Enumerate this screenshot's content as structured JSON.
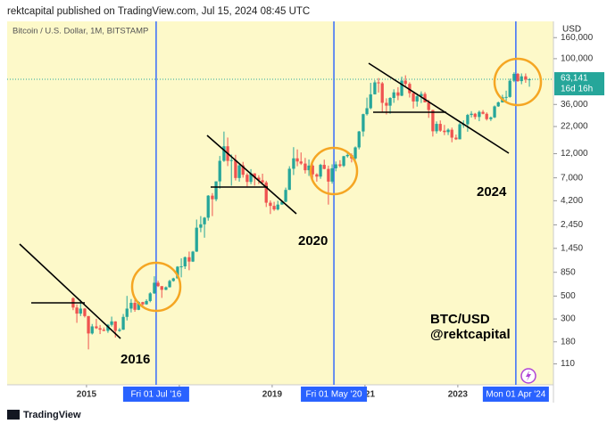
{
  "header": {
    "publisher": "rektcapital published on TradingView.com, Jul 15, 2024 08:45 UTC"
  },
  "chart_data": {
    "type": "candlestick",
    "subtitle": "Bitcoin / U.S. Dollar, 1M, BITSTAMP",
    "currency": "USD",
    "log_scale": true,
    "up_color": "#26a69a",
    "down_color": "#ef5350",
    "xlim": [
      2013.29,
      2025.06
    ],
    "ylim": [
      69,
      230000
    ],
    "xticks": [
      2015,
      2017,
      2019,
      2021,
      2023
    ],
    "yticks": [
      {
        "value": 160000,
        "label": "160,000"
      },
      {
        "value": 100000,
        "label": "100,000"
      },
      {
        "value": 36000,
        "label": "36,000"
      },
      {
        "value": 22000,
        "label": "22,000"
      },
      {
        "value": 12000,
        "label": "12,000"
      },
      {
        "value": 7000,
        "label": "7,000"
      },
      {
        "value": 4200,
        "label": "4,200"
      },
      {
        "value": 2450,
        "label": "2,450"
      },
      {
        "value": 1450,
        "label": "1,450"
      },
      850,
      500,
      300,
      180,
      110
    ],
    "last_price": {
      "value": 63141,
      "label": "63,141"
    },
    "countdown": "16d 16h",
    "markers": [
      {
        "x": 2016.5,
        "label": "Fri 01 Jul '16"
      },
      {
        "x": 2020.33,
        "label": "Fri 01 May '20"
      },
      {
        "x": 2024.25,
        "label": "Mon 01 Apr '24"
      }
    ],
    "annotations": [
      "2016",
      "2020",
      "2024",
      "BTC/USD",
      "@rektcapital"
    ],
    "x": [
      2014.67,
      2014.75,
      2014.83,
      2014.92,
      2015.0,
      2015.08,
      2015.17,
      2015.25,
      2015.33,
      2015.42,
      2015.5,
      2015.58,
      2015.67,
      2015.75,
      2015.83,
      2015.92,
      2016.0,
      2016.08,
      2016.17,
      2016.25,
      2016.33,
      2016.42,
      2016.5,
      2016.58,
      2016.67,
      2016.75,
      2016.83,
      2016.92,
      2017.0,
      2017.08,
      2017.17,
      2017.25,
      2017.33,
      2017.42,
      2017.5,
      2017.58,
      2017.67,
      2017.75,
      2017.83,
      2017.92,
      2018.0,
      2018.08,
      2018.17,
      2018.25,
      2018.33,
      2018.42,
      2018.5,
      2018.58,
      2018.67,
      2018.75,
      2018.83,
      2018.92,
      2019.0,
      2019.08,
      2019.17,
      2019.25,
      2019.33,
      2019.42,
      2019.5,
      2019.58,
      2019.67,
      2019.75,
      2019.83,
      2019.92,
      2020.0,
      2020.08,
      2020.17,
      2020.25,
      2020.33,
      2020.42,
      2020.5,
      2020.58,
      2020.67,
      2020.75,
      2020.83,
      2020.92,
      2021.0,
      2021.08,
      2021.17,
      2021.25,
      2021.33,
      2021.42,
      2021.5,
      2021.58,
      2021.67,
      2021.75,
      2021.83,
      2021.92,
      2022.0,
      2022.08,
      2022.17,
      2022.25,
      2022.33,
      2022.42,
      2022.5,
      2022.58,
      2022.67,
      2022.75,
      2022.83,
      2022.92,
      2023.0,
      2023.08,
      2023.17,
      2023.25,
      2023.33,
      2023.42,
      2023.5,
      2023.58,
      2023.67,
      2023.75,
      2023.83,
      2023.92,
      2024.0,
      2024.08,
      2024.17,
      2024.25,
      2024.33,
      2024.42,
      2024.5
    ],
    "ohlc": [
      [
        477,
        487,
        365,
        387
      ],
      [
        387,
        415,
        275,
        338
      ],
      [
        338,
        460,
        320,
        378
      ],
      [
        378,
        383,
        310,
        320
      ],
      [
        320,
        320,
        152,
        217
      ],
      [
        217,
        268,
        212,
        254
      ],
      [
        254,
        300,
        240,
        244
      ],
      [
        244,
        262,
        214,
        236
      ],
      [
        236,
        248,
        228,
        230
      ],
      [
        230,
        268,
        220,
        263
      ],
      [
        263,
        316,
        253,
        284
      ],
      [
        284,
        285,
        198,
        230
      ],
      [
        230,
        245,
        225,
        236
      ],
      [
        236,
        335,
        235,
        314
      ],
      [
        314,
        502,
        290,
        378
      ],
      [
        378,
        468,
        347,
        430
      ],
      [
        430,
        464,
        352,
        368
      ],
      [
        368,
        445,
        365,
        437
      ],
      [
        437,
        440,
        394,
        416
      ],
      [
        416,
        466,
        412,
        448
      ],
      [
        448,
        545,
        435,
        531
      ],
      [
        531,
        778,
        525,
        673
      ],
      [
        673,
        703,
        612,
        624
      ],
      [
        624,
        624,
        480,
        575
      ],
      [
        575,
        620,
        570,
        609
      ],
      [
        609,
        720,
        605,
        700
      ],
      [
        700,
        753,
        690,
        742
      ],
      [
        742,
        975,
        740,
        964
      ],
      [
        964,
        1160,
        760,
        970
      ],
      [
        970,
        1210,
        915,
        1190
      ],
      [
        1190,
        1350,
        890,
        1080
      ],
      [
        1080,
        1370,
        1070,
        1348
      ],
      [
        1348,
        2760,
        1340,
        2300
      ],
      [
        2300,
        2980,
        2080,
        2480
      ],
      [
        2480,
        2920,
        1840,
        2875
      ],
      [
        2875,
        4760,
        2690,
        4703
      ],
      [
        4703,
        4980,
        2980,
        4338
      ],
      [
        4338,
        6480,
        4150,
        6468
      ],
      [
        6468,
        11400,
        5500,
        10233
      ],
      [
        10233,
        19666,
        10000,
        14156
      ],
      [
        14156,
        17200,
        9100,
        10221
      ],
      [
        10221,
        11790,
        5870,
        10397
      ],
      [
        10397,
        11700,
        6600,
        6973
      ],
      [
        6973,
        9760,
        6430,
        9246
      ],
      [
        9246,
        10000,
        7030,
        7494
      ],
      [
        7494,
        7780,
        5780,
        6391
      ],
      [
        6391,
        8500,
        6070,
        7730
      ],
      [
        7730,
        7760,
        5880,
        7033
      ],
      [
        7033,
        7410,
        6100,
        6635
      ],
      [
        6635,
        7680,
        6200,
        6317
      ],
      [
        6317,
        6560,
        3650,
        4017
      ],
      [
        4017,
        4230,
        3120,
        3742
      ],
      [
        3742,
        4100,
        3350,
        3457
      ],
      [
        3457,
        4200,
        3380,
        3854
      ],
      [
        3854,
        4130,
        3850,
        4105
      ],
      [
        4105,
        5630,
        4070,
        5350
      ],
      [
        5350,
        9070,
        5340,
        8574
      ],
      [
        8574,
        13880,
        7450,
        10817
      ],
      [
        10817,
        13200,
        9070,
        10085
      ],
      [
        10085,
        12330,
        9330,
        9630
      ],
      [
        9630,
        10920,
        7710,
        8293
      ],
      [
        8293,
        10540,
        7300,
        9199
      ],
      [
        9199,
        9520,
        6540,
        7569
      ],
      [
        7569,
        7750,
        6430,
        7193
      ],
      [
        7193,
        9580,
        6850,
        9350
      ],
      [
        9350,
        10500,
        8470,
        8543
      ],
      [
        8543,
        9190,
        3850,
        6438
      ],
      [
        6438,
        9470,
        6150,
        8658
      ],
      [
        8658,
        10080,
        8100,
        9461
      ],
      [
        9461,
        10380,
        8830,
        9138
      ],
      [
        9138,
        11440,
        8900,
        11351
      ],
      [
        11351,
        12480,
        10960,
        11655
      ],
      [
        11655,
        12070,
        9880,
        10779
      ],
      [
        10779,
        14100,
        10420,
        13804
      ],
      [
        13804,
        19950,
        13220,
        19700
      ],
      [
        19700,
        29300,
        17600,
        28990
      ],
      [
        28990,
        41950,
        28130,
        33114
      ],
      [
        33114,
        58350,
        32300,
        45137
      ],
      [
        45137,
        61780,
        45000,
        58918
      ],
      [
        58918,
        64900,
        47000,
        57750
      ],
      [
        57750,
        59600,
        30000,
        37332
      ],
      [
        37332,
        41300,
        28800,
        35041
      ],
      [
        35041,
        42320,
        29280,
        41626
      ],
      [
        41626,
        50500,
        37330,
        47166
      ],
      [
        47166,
        52920,
        39600,
        43791
      ],
      [
        43791,
        67000,
        43290,
        61318
      ],
      [
        61318,
        69000,
        53250,
        57005
      ],
      [
        57005,
        59100,
        42000,
        46306
      ],
      [
        46306,
        47990,
        32950,
        38483
      ],
      [
        38483,
        45800,
        34300,
        43194
      ],
      [
        43194,
        48200,
        37200,
        45539
      ],
      [
        45539,
        47450,
        37700,
        37714
      ],
      [
        37714,
        40000,
        26700,
        31792
      ],
      [
        31792,
        31980,
        17600,
        19785
      ],
      [
        19785,
        24670,
        18800,
        23336
      ],
      [
        23336,
        25200,
        19540,
        20050
      ],
      [
        20050,
        22800,
        18150,
        19423
      ],
      [
        19423,
        21100,
        18200,
        20495
      ],
      [
        20495,
        21480,
        15480,
        17168
      ],
      [
        17168,
        18380,
        16300,
        16548
      ],
      [
        16548,
        23960,
        16500,
        23139
      ],
      [
        23139,
        25250,
        21350,
        23147
      ],
      [
        23147,
        29190,
        19570,
        28478
      ],
      [
        28478,
        31000,
        26900,
        29268
      ],
      [
        29268,
        29820,
        25810,
        27220
      ],
      [
        27220,
        31430,
        24780,
        30477
      ],
      [
        30477,
        31800,
        28860,
        29230
      ],
      [
        29230,
        30200,
        25160,
        25940
      ],
      [
        25940,
        27500,
        24900,
        26962
      ],
      [
        26962,
        35200,
        26560,
        34500
      ],
      [
        34500,
        38420,
        34100,
        37700
      ],
      [
        37700,
        44700,
        37600,
        42265
      ],
      [
        42265,
        48970,
        38550,
        42580
      ],
      [
        42580,
        63960,
        41900,
        61130
      ],
      [
        61130,
        73800,
        59300,
        71280
      ],
      [
        71280,
        72700,
        59600,
        60630
      ],
      [
        60630,
        71950,
        56550,
        67470
      ],
      [
        67470,
        71950,
        58400,
        62670
      ],
      [
        62670,
        64860,
        53500,
        63141
      ]
    ]
  },
  "footer": {
    "brand": "TradingView"
  }
}
